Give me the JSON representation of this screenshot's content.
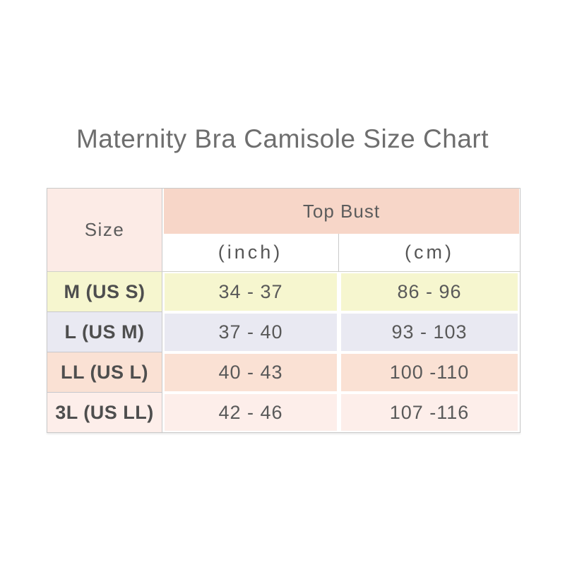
{
  "title": "Maternity Bra Camisole Size Chart",
  "table": {
    "size_header": "Size",
    "group_header": "Top Bust",
    "unit_inch": "(inch)",
    "unit_cm": "(cm)",
    "rows": [
      {
        "size": "M (US S)",
        "inch": "34 - 37",
        "cm": "86 - 96",
        "color": "#f6f6cf"
      },
      {
        "size": "L (US M)",
        "inch": "37 - 40",
        "cm": "93 - 103",
        "color": "#e9e9f2"
      },
      {
        "size": "LL (US L)",
        "inch": "40 - 43",
        "cm": "100 -110",
        "color": "#fae1d4"
      },
      {
        "size": "3L (US LL)",
        "inch": "42 - 46",
        "cm": "107 -116",
        "color": "#fdeeea"
      }
    ],
    "colors": {
      "group_header_bg": "#f7d6c8",
      "size_header_bg": "#fcebe6",
      "border": "#c9c9c9",
      "title_text": "#6e6e6e",
      "cell_text": "#595959"
    }
  },
  "chart_data": {
    "type": "table",
    "title": "Maternity Bra Camisole Size Chart",
    "columns": [
      "Size",
      "Top Bust (inch)",
      "Top Bust (cm)"
    ],
    "rows": [
      [
        "M (US S)",
        "34 - 37",
        "86 - 96"
      ],
      [
        "L (US M)",
        "37 - 40",
        "93 - 103"
      ],
      [
        "LL (US L)",
        "40 - 43",
        "100 -110"
      ],
      [
        "3L (US LL)",
        "42 - 46",
        "107 -116"
      ]
    ]
  }
}
